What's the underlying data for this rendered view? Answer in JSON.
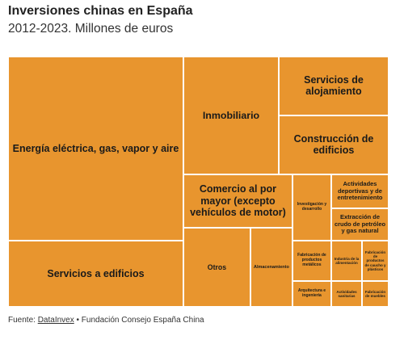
{
  "chart_data": {
    "type": "treemap",
    "title": "Inversiones chinas en España",
    "subtitle": "2012-2023. Millones de euros",
    "categories": [
      "Energía eléctrica, gas, vapor y aire",
      "Servicios a edificios",
      "Inmobiliario",
      "Servicios de alojamiento",
      "Construcción de edificios",
      "Comercio al por mayor (excepto vehículos de motor)",
      "Otros",
      "Almacenamiento",
      "Investigación y desarrollo",
      "Actividades deportivas y de entretenimiento",
      "Extracción de crudo de petróleo y gas natural",
      "Fabricación de productos metálicos",
      "Arquitectura e ingeniería",
      "Industria de la alimentación",
      "Fabricación de productos de caucho y plásticos",
      "Actividades sanitarias",
      "Fabricación de muebles"
    ],
    "values": [
      4948,
      1779,
      1723,
      993,
      993,
      891,
      813,
      510,
      394,
      298,
      284,
      240,
      154,
      190,
      165,
      122,
      106
    ],
    "color": "#e8952e",
    "source": {
      "prefix": "Fuente:",
      "link": "DataInvex",
      "rest": "• Fundación Consejo España China"
    }
  }
}
